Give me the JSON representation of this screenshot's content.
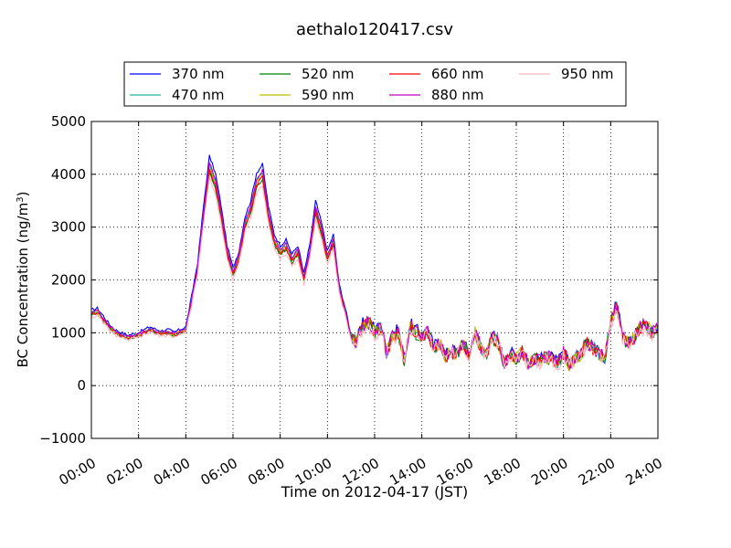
{
  "chart_data": {
    "type": "line",
    "title": "aethalo120417.csv",
    "xlabel": "Time on 2012-04-17 (JST)",
    "ylabel": "BC Concentration (ng/m³)",
    "ylabel_main": "BC Concentration (ng/m",
    "ylabel_sup": "3",
    "ylabel_tail": ")",
    "xlim": [
      0,
      24
    ],
    "ylim": [
      -1000,
      5000
    ],
    "x_ticks": [
      0,
      2,
      4,
      6,
      8,
      10,
      12,
      14,
      16,
      18,
      20,
      22,
      24
    ],
    "x_tick_labels": [
      "00:00",
      "02:00",
      "04:00",
      "06:00",
      "08:00",
      "10:00",
      "12:00",
      "14:00",
      "16:00",
      "18:00",
      "20:00",
      "22:00",
      "24:00"
    ],
    "y_ticks": [
      -1000,
      0,
      1000,
      2000,
      3000,
      4000,
      5000
    ],
    "y_tick_labels": [
      "−1000",
      "0",
      "1000",
      "2000",
      "3000",
      "4000",
      "5000"
    ],
    "grid": true,
    "legend_position": "top",
    "base_x": [
      0,
      0.25,
      0.5,
      0.75,
      1,
      1.25,
      1.5,
      1.75,
      2,
      2.25,
      2.5,
      2.75,
      3,
      3.25,
      3.5,
      3.75,
      4,
      4.25,
      4.5,
      4.75,
      5,
      5.25,
      5.5,
      5.75,
      6,
      6.25,
      6.5,
      6.75,
      7,
      7.25,
      7.5,
      7.75,
      8,
      8.25,
      8.5,
      8.75,
      9,
      9.25,
      9.5,
      9.75,
      10,
      10.25,
      10.5,
      10.75,
      11,
      11.25,
      11.5,
      11.75,
      12,
      12.25,
      12.5,
      12.75,
      13,
      13.25,
      13.5,
      13.75,
      14,
      14.25,
      14.5,
      14.75,
      15,
      15.25,
      15.5,
      15.75,
      16,
      16.25,
      16.5,
      16.75,
      17,
      17.25,
      17.5,
      17.75,
      18,
      18.25,
      18.5,
      18.75,
      19,
      19.25,
      19.5,
      19.75,
      20,
      20.25,
      20.5,
      20.75,
      21,
      21.25,
      21.5,
      21.75,
      22,
      22.25,
      22.5,
      22.75,
      23,
      23.25,
      23.5,
      23.75,
      24
    ],
    "base_y": [
      1350,
      1380,
      1250,
      1100,
      1000,
      950,
      900,
      920,
      950,
      1000,
      1050,
      1000,
      980,
      1000,
      950,
      1000,
      1050,
      1600,
      2200,
      3200,
      4100,
      3800,
      3200,
      2500,
      2100,
      2400,
      3000,
      3300,
      3800,
      3950,
      3200,
      2700,
      2500,
      2600,
      2350,
      2500,
      2000,
      2500,
      3300,
      2900,
      2400,
      2700,
      1800,
      1400,
      900,
      800,
      1100,
      1200,
      1000,
      1100,
      600,
      900,
      1000,
      500,
      1100,
      1000,
      900,
      1000,
      700,
      800,
      550,
      650,
      600,
      800,
      550,
      1000,
      700,
      600,
      900,
      800,
      400,
      600,
      500,
      650,
      400,
      500,
      450,
      550,
      500,
      400,
      600,
      400,
      500,
      600,
      800,
      700,
      600,
      500,
      1200,
      1500,
      900,
      800,
      900,
      1100,
      1100,
      1000,
      1050
    ],
    "series": [
      {
        "name": "370 nm",
        "color": "#0000ff"
      },
      {
        "name": "470 nm",
        "color": "#20b2aa"
      },
      {
        "name": "520 nm",
        "color": "#008000"
      },
      {
        "name": "590 nm",
        "color": "#bfbf00"
      },
      {
        "name": "660 nm",
        "color": "#ff0000"
      },
      {
        "name": "880 nm",
        "color": "#bf00bf"
      },
      {
        "name": "950 nm",
        "color": "#ffb6c1"
      }
    ]
  }
}
